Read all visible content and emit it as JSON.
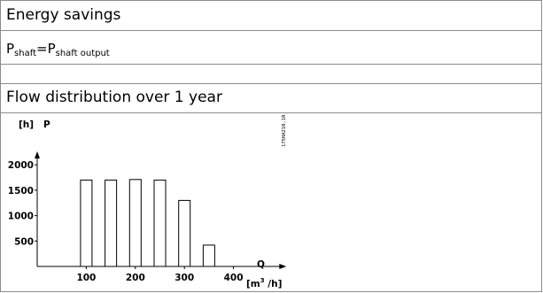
{
  "header": {
    "title": "Energy savings"
  },
  "formula": {
    "p1": "P",
    "s1": "shaft",
    "eq": "=",
    "p2": "P",
    "s2": "shaft output"
  },
  "section": {
    "title": "Flow distribution over 1 year"
  },
  "figure_id": "175HA210.10",
  "chart_data": {
    "type": "bar",
    "categories": [
      100,
      150,
      200,
      250,
      300,
      350
    ],
    "values": [
      1700,
      1700,
      1710,
      1700,
      1300,
      420
    ],
    "ylabel_unit": "[h]",
    "ylabel_symbol": "P",
    "xlabel_symbol": "Q",
    "xlabel_unit": "[m³/h]",
    "xticks": [
      100,
      200,
      300,
      400
    ],
    "yticks": [
      500,
      1000,
      1500,
      2000
    ],
    "xlim": [
      0,
      450
    ],
    "ylim": [
      0,
      2300
    ],
    "grid": false,
    "legend": "none"
  }
}
